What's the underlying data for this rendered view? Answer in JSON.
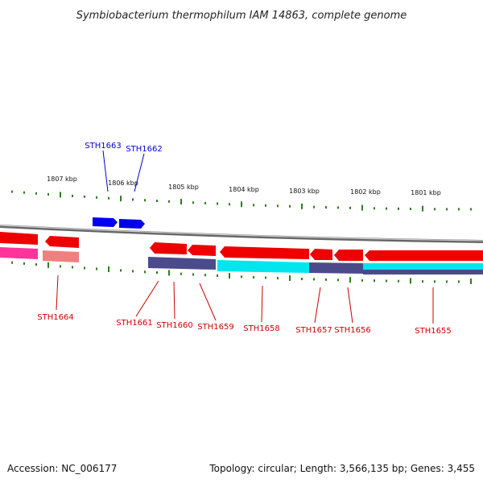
{
  "title": "Symbiobacterium thermophilum IAM 14863, complete genome",
  "footer": {
    "accession": "Accession: NC_006177",
    "summary": "Topology: circular; Length: 3,566,135 bp; Genes: 3,455"
  },
  "colors": {
    "forward_gene": "#ff0000",
    "forward_gene_alt": "#0000ff",
    "cog_magenta": "#ff3399",
    "cog_salmon": "#f08080",
    "cog_navy": "#4b4b8c",
    "cog_cyan": "#00e5ee",
    "tick": "#2e7d1e",
    "backbone": "#888888"
  },
  "kbp_labels": [
    "1807 kbp",
    "1806 kbp",
    "1805 kbp",
    "1804 kbp",
    "1803 kbp",
    "1802 kbp",
    "1801 kbp"
  ],
  "top_genes": [
    {
      "name": "STH1663",
      "color": "#0000cc"
    },
    {
      "name": "STH1662",
      "color": "#0000cc"
    }
  ],
  "bottom_genes": [
    {
      "name": "STH1664",
      "color": "#cc0000"
    },
    {
      "name": "STH1661",
      "color": "#cc0000"
    },
    {
      "name": "STH1660",
      "color": "#cc0000"
    },
    {
      "name": "STH1659",
      "color": "#cc0000"
    },
    {
      "name": "STH1658",
      "color": "#cc0000"
    },
    {
      "name": "STH1657",
      "color": "#cc0000"
    },
    {
      "name": "STH1656",
      "color": "#cc0000"
    },
    {
      "name": "STH1655",
      "color": "#cc0000"
    }
  ]
}
